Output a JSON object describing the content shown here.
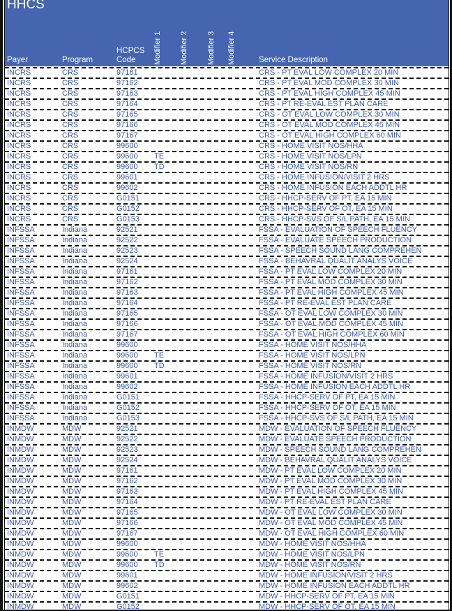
{
  "title": "HHCS",
  "columns": {
    "payer": "Payer",
    "program": "Program",
    "code": "HCPCS\nCode",
    "mod1": "Modifier 1",
    "mod2": "Modifier 2",
    "mod3": "Modifier 3",
    "mod4": "Modifier 4",
    "desc": "Service Description"
  },
  "colors": {
    "header_bg": "#4565b1",
    "text": "#3b5bb8"
  },
  "rows": [
    [
      "INCRS",
      "CRS",
      "97161",
      "",
      "CRS - PT EVAL LOW COMPLEX 20 MIN"
    ],
    [
      "INCRS",
      "CRS",
      "97162",
      "",
      "CRS - PT EVAL MOD COMPLEX 30 MIN"
    ],
    [
      "INCRS",
      "CRS",
      "97163",
      "",
      "CRS - PT EVAL HIGH COMPLEX 45 MIN"
    ],
    [
      "INCRS",
      "CRS",
      "97164",
      "",
      "CRS - PT RE-EVAL EST PLAN CARE"
    ],
    [
      "INCRS",
      "CRS",
      "97165",
      "",
      "CRS - OT EVAL LOW COMPLEX 30 MIN"
    ],
    [
      "INCRS",
      "CRS",
      "97166",
      "",
      "CRS - OT EVAL MOD COMPLEX 45 MIN"
    ],
    [
      "INCRS",
      "CRS",
      "97167",
      "",
      "CRS - OT EVAL HIGH COMPLEX 60 MIN"
    ],
    [
      "INCRS",
      "CRS",
      "99600",
      "",
      "CRS - HOME VISIT NOS/HHA"
    ],
    [
      "INCRS",
      "CRS",
      "99600",
      "TE",
      "CRS - HOME VISIT NOS/LPN"
    ],
    [
      "INCRS",
      "CRS",
      "99600",
      "TD",
      "CRS - HOME VISIT NOS/RN"
    ],
    [
      "INCRS",
      "CRS",
      "99601",
      "",
      "CRS - HOME INFUSION/VISIT 2 HRS"
    ],
    [
      "INCRS",
      "CRS",
      "99602",
      "",
      "CRS - HOME INFUSION EACH ADDTL HR"
    ],
    [
      "INCRS",
      "CRS",
      "G0151",
      "",
      "CRS - HHCP-SERV OF PT, EA 15 MIN"
    ],
    [
      "INCRS",
      "CRS",
      "G0152",
      "",
      "CRS - HHCP-SERV OF OT, EA 15 MIN"
    ],
    [
      "INCRS",
      "CRS",
      "G0153",
      "",
      "CRS - HHCP-SVS OF S/L PATH, EA 15 MIN"
    ],
    [
      "INFSSA",
      "Indiana",
      "92521",
      "",
      "FSSA - EVALUATION OF SPEECH FLUENCY"
    ],
    [
      "INFSSA",
      "Indiana",
      "92522",
      "",
      "FSSA - EVALUATE SPEECH PRODUCTION"
    ],
    [
      "INFSSA",
      "Indiana",
      "92523",
      "",
      "FSSA - SPEECH SOUND LANG COMPREHEN"
    ],
    [
      "INFSSA",
      "Indiana",
      "92524",
      "",
      "FSSA - BEHAVRAL QUALIT ANALYS VOICE"
    ],
    [
      "INFSSA",
      "Indiana",
      "97161",
      "",
      "FSSA - PT EVAL LOW COMPLEX 20 MIN"
    ],
    [
      "INFSSA",
      "Indiana",
      "97162",
      "",
      "FSSA - PT EVAL MOD COMPLEX 30 MIN"
    ],
    [
      "INFSSA",
      "Indiana",
      "97163",
      "",
      "FSSA - PT EVAL HIGH COMPLEX 45 MIN"
    ],
    [
      "INFSSA",
      "Indiana",
      "97164",
      "",
      "FSSA - PT RE-EVAL EST PLAN CARE"
    ],
    [
      "INFSSA",
      "Indiana",
      "97165",
      "",
      "FSSA - OT EVAL LOW COMPLEX 30 MIN"
    ],
    [
      "INFSSA",
      "Indiana",
      "97166",
      "",
      "FSSA - OT EVAL MOD COMPLEX 45 MIN"
    ],
    [
      "INFSSA",
      "Indiana",
      "97167",
      "",
      "FSSA - OT EVAL HIGH COMPLEX 60 MIN"
    ],
    [
      "INFSSA",
      "Indiana",
      "99600",
      "",
      "FSSA - HOME VISIT NOS/HHA"
    ],
    [
      "INFSSA",
      "Indiana",
      "99600",
      "TE",
      "FSSA - HOME VISIT NOS/LPN"
    ],
    [
      "INFSSA",
      "Indiana",
      "99600",
      "TD",
      "FSSA - HOME VISIT NOS/RN"
    ],
    [
      "INFSSA",
      "Indiana",
      "99601",
      "",
      "FSSA - HOME INFUSION/VISIT 2 HRS"
    ],
    [
      "INFSSA",
      "Indiana",
      "99602",
      "",
      "FSSA - HOME INFUSION EACH ADDTL HR"
    ],
    [
      "INFSSA",
      "Indiana",
      "G0151",
      "",
      "FSSA - HHCP-SERV OF PT, EA 15 MIN"
    ],
    [
      "INFSSA",
      "Indiana",
      "G0152",
      "",
      "FSSA - HHCP-SERV OF OT, EA 15 MIN"
    ],
    [
      "INFSSA",
      "Indiana",
      "G0153",
      "",
      "FSSA - HHCP-SVS OF S/L PATH, EA 15 MIN"
    ],
    [
      "INMDW",
      "MDW",
      "92521",
      "",
      "MDW - EVALUATION OF SPEECH FLUENCY"
    ],
    [
      "INMDW",
      "MDW",
      "92522",
      "",
      "MDW - EVALUATE SPEECH PRODUCTION"
    ],
    [
      "INMDW",
      "MDW",
      "92523",
      "",
      "MDW - SPEECH SOUND LANG COMPREHEN"
    ],
    [
      "INMDW",
      "MDW",
      "92524",
      "",
      "MDW - BEHAVRAL QUALIT ANALYS VOICE"
    ],
    [
      "INMDW",
      "MDW",
      "97161",
      "",
      "MDW - PT EVAL LOW COMPLEX 20 MIN"
    ],
    [
      "INMDW",
      "MDW",
      "97162",
      "",
      "MDW - PT EVAL MOD COMPLEX 30 MIN"
    ],
    [
      "INMDW",
      "MDW",
      "97163",
      "",
      "MDW - PT EVAL HIGH COMPLEX 45 MIN"
    ],
    [
      "INMDW",
      "MDW",
      "97164",
      "",
      "MDW - PT RE-EVAL EST PLAN CARE"
    ],
    [
      "INMDW",
      "MDW",
      "97165",
      "",
      "MDW - OT EVAL LOW COMPLEX 30 MIN"
    ],
    [
      "INMDW",
      "MDW",
      "97166",
      "",
      "MDW - OT EVAL MOD COMPLEX 45 MIN"
    ],
    [
      "INMDW",
      "MDW",
      "97167",
      "",
      "MDW - OT EVAL HIGH COMPLEX 60 MIN"
    ],
    [
      "INMDW",
      "MDW",
      "99600",
      "",
      "MDW - HOME VISIT NOS/HHA"
    ],
    [
      "INMDW",
      "MDW",
      "99600",
      "TE",
      "MDW - HOME VISIT NOS/LPN"
    ],
    [
      "INMDW",
      "MDW",
      "99600",
      "TD",
      "MDW - HOME VISIT NOS/RN"
    ],
    [
      "INMDW",
      "MDW",
      "99601",
      "",
      "MDW - HOME INFUSION/VISIT 2 HRS"
    ],
    [
      "INMDW",
      "MDW",
      "99602",
      "",
      "MDW - HOME INFUSION EACH ADDTL HR"
    ],
    [
      "INMDW",
      "MDW",
      "G0151",
      "",
      "MDW - HHCP-SERV OF PT, EA 15 MIN"
    ],
    [
      "INMDW",
      "MDW",
      "G0152",
      "",
      "MDW - HHCP-SERV OF OT, EA 15 MIN"
    ]
  ]
}
